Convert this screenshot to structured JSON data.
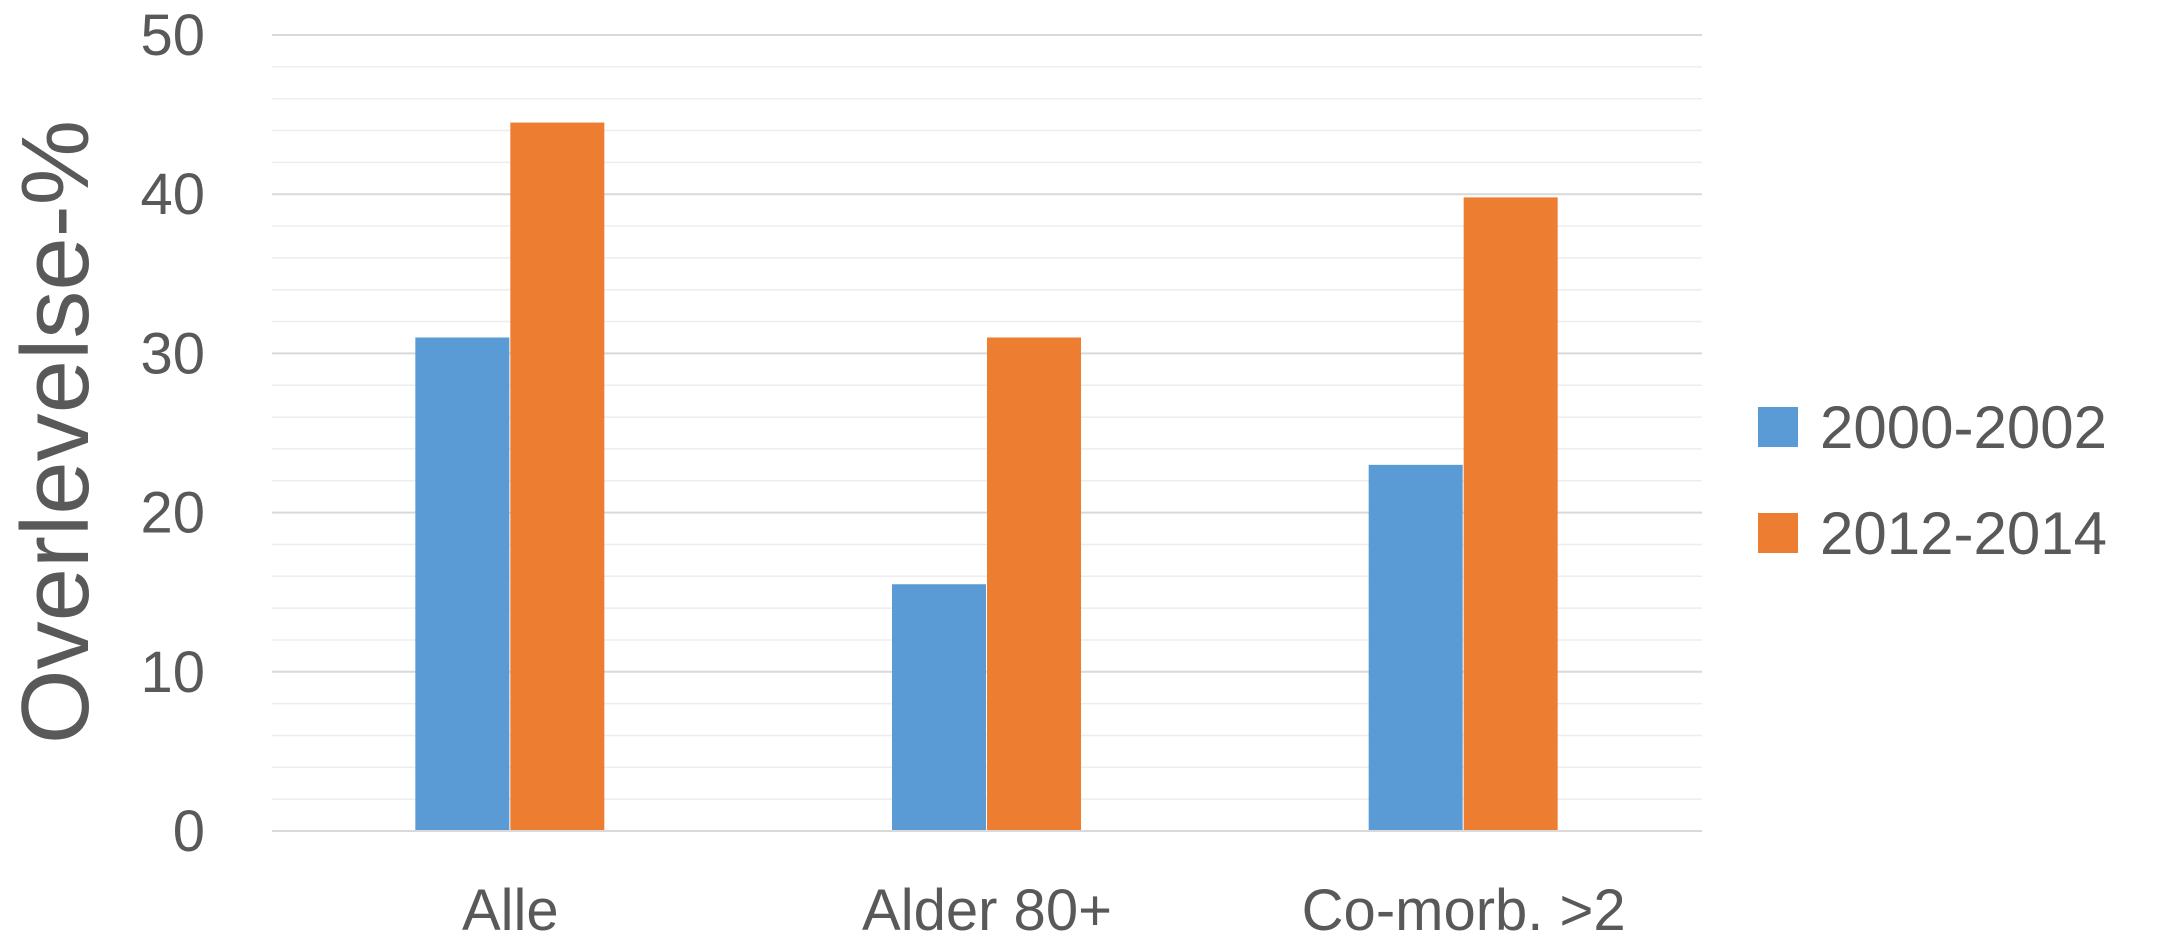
{
  "chart_data": {
    "type": "bar",
    "title": "",
    "xlabel": "",
    "ylabel": "Overlevelse-%",
    "categories": [
      "Alle",
      "Alder 80+",
      "Co-morb. >2"
    ],
    "series": [
      {
        "name": "2000-2002",
        "color": "#5B9BD5",
        "values": [
          31,
          15.5,
          23
        ]
      },
      {
        "name": "2012-2014",
        "color": "#ED7D31",
        "values": [
          44.5,
          31,
          39.8
        ]
      }
    ],
    "ylim": [
      0,
      50
    ],
    "yticks": [
      0,
      10,
      20,
      30,
      40,
      50
    ],
    "ytick_labels": [
      "0",
      "10",
      "20",
      "30",
      "40",
      "50"
    ],
    "grid": true,
    "minor_grid": true,
    "legend_position": "right"
  }
}
